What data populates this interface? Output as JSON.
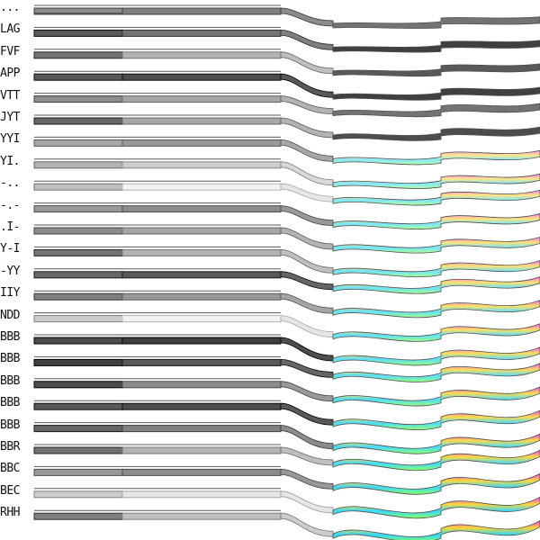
{
  "row_labels": [
    "...",
    "LAG",
    "FVF",
    "APP",
    "VTT",
    "JYT",
    "YYI",
    "YI.",
    "-..",
    "-.-",
    ".I-",
    "Y-I",
    "-YY",
    "IIY",
    "NDD",
    "BBB",
    "BBB",
    "BBB",
    "BBB",
    "BBB",
    "BBR",
    "BBC",
    "BEC",
    "RHH"
  ],
  "row_tones": [
    0.55,
    0.35,
    0.45,
    0.35,
    0.55,
    0.4,
    0.65,
    0.7,
    0.75,
    0.6,
    0.55,
    0.45,
    0.4,
    0.5,
    0.8,
    0.3,
    0.25,
    0.3,
    0.35,
    0.4,
    0.45,
    0.6,
    0.8,
    0.5
  ],
  "colors": {
    "background": "#ffffff",
    "label_text": "#111111",
    "band_dark": "#555555",
    "band_mid": "#999999",
    "band_light": "#d6d6d6",
    "rainbow_1": "#ff00ff",
    "rainbow_2": "#ffcc00",
    "rainbow_3": "#00ccff",
    "rainbow_4": "#66ff33"
  }
}
